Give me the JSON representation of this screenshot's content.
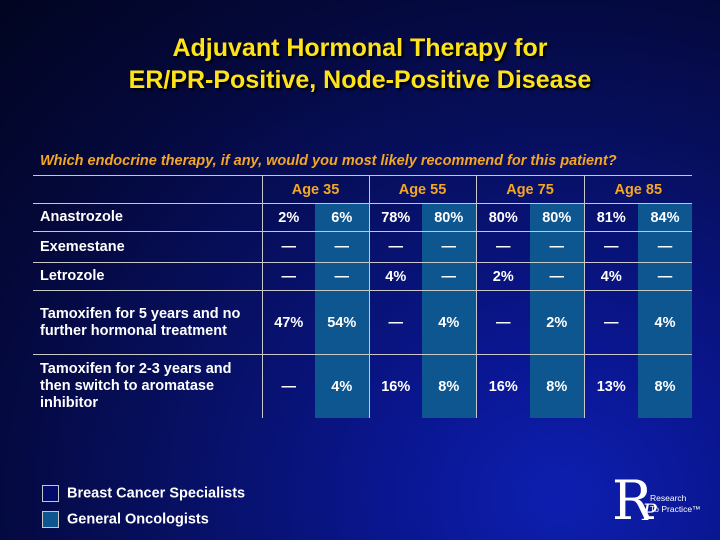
{
  "title_line1": "Adjuvant Hormonal Therapy for",
  "title_line2": "ER/PR-Positive, Node-Positive Disease",
  "question": "Which endocrine therapy, if any, would you most likely recommend for this patient?",
  "age_groups": [
    "Age 35",
    "Age 55",
    "Age 75",
    "Age 85"
  ],
  "rows": [
    {
      "label": "Anastrozole",
      "values": [
        "2%",
        "6%",
        "78%",
        "80%",
        "80%",
        "80%",
        "81%",
        "84%"
      ]
    },
    {
      "label": "Exemestane",
      "values": [
        "—",
        "—",
        "—",
        "—",
        "—",
        "—",
        "—",
        "—"
      ]
    },
    {
      "label": "Letrozole",
      "values": [
        "—",
        "—",
        "4%",
        "—",
        "2%",
        "—",
        "4%",
        "—"
      ]
    },
    {
      "label": "Tamoxifen for 5 years and no further hormonal treatment",
      "values": [
        "47%",
        "54%",
        "—",
        "4%",
        "—",
        "2%",
        "—",
        "4%"
      ]
    },
    {
      "label": "Tamoxifen for 2-3 years and then switch to aromatase inhibitor",
      "values": [
        "—",
        "4%",
        "16%",
        "8%",
        "16%",
        "8%",
        "13%",
        "8%"
      ]
    }
  ],
  "legend": [
    {
      "label": "Breast Cancer Specialists",
      "color": "#020a6a"
    },
    {
      "label": "General Oncologists",
      "color": "#0d5690"
    }
  ],
  "logo": {
    "letter_r": "R",
    "letter_p": "P",
    "line1": "Research",
    "line2": "To Practice™"
  }
}
